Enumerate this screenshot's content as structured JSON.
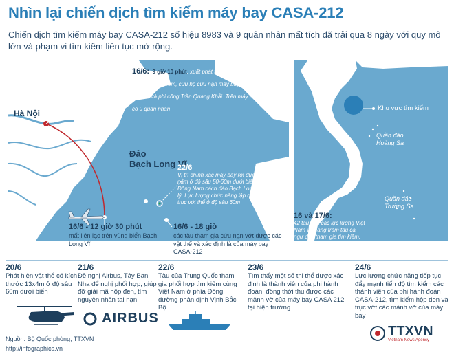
{
  "title": "Nhìn lại chiến dịch tìm kiếm máy bay CASA-212",
  "subtitle": "Chiến dịch tìm kiếm máy bay CASA-212 số hiệu 8983 và 9 quân nhân mất tích đã trải qua 8 ngày với quy mô lớn và phạm vi tìm kiếm liên tục mở rộng.",
  "map": {
    "hanoi": "Hà Nội",
    "island": "Đảo\nBạch Long Vĩ",
    "e1": {
      "date": "16/6:",
      "time": "9 giờ 10 phút",
      "text": ", xuất phát từ sân bay Gia Lâm tham gia tìm kiếm, cứu hộ cứu nạn máy bay SU-30MK2 và phi công Trần Quang Khải. Trên máy bay có 9 quân nhân"
    },
    "e2": {
      "date": "22/6",
      "text": "Vị trí chính xác máy bay rơi được xác định, nằm ở độ sâu 50-60m dưới biển, phía Nam Đông Nam cách đảo Bạch Long Vĩ 15 hải lý. Lực lượng chức năng lập các phương án trục vớt thể ở độ sâu 60m"
    },
    "e3": {
      "date": "16/6 - 12 giờ 30 phút",
      "text": "mất liên lạc trên vùng biển Bạch Long Vĩ"
    },
    "e4": {
      "date": "16/6 - 18 giờ",
      "text": "các tàu tham gia cứu nạn vớt được các vật thể và xác định là của máy bay CASA-212"
    }
  },
  "right_map": {
    "search_area": "Khu vực tìm kiếm",
    "hoang_sa": "Quần đảo\nHoàng Sa",
    "truong_sa": "Quần đảo\nTrường Sa",
    "e5": {
      "date": "16 và 17/6:",
      "text": "42 tàu của các lực lượng Việt Nam và hàng trăm tàu cá ngư dân tham gia tìm kiếm. Bộ Quốc phòng huy động trang thiết bị hiện đại nhất"
    }
  },
  "timeline": [
    {
      "date": "20/6",
      "text": "Phát hiện vật thể có kích thước 13x4m ở độ sâu 60m dưới biển"
    },
    {
      "date": "21/6",
      "text": "Đề nghị Airbus, Tây Ban Nha để nghị phối hợp, giúp đỡ giải mã hộp đen, tìm nguyên nhân tai nạn"
    },
    {
      "date": "22/6",
      "text": "Tàu của Trung Quốc tham gia phối hợp tìm kiếm cùng Việt Nam ở phía Đông đường phân định Vịnh Bắc Bộ"
    },
    {
      "date": "23/6",
      "text": "Tìm thấy một số thi thể được xác định là thành viên của phi hành đoàn, đồng thời thu được các mảnh vỡ của máy bay CASA 212 tại hiện trường"
    },
    {
      "date": "24/6",
      "text": "Lực lượng chức năng tiếp tục đẩy mạnh tiến độ tìm kiếm các thành viên của phi hành đoàn CASA-212, tìm kiếm hộp đen và trục vớt các mảnh vỡ của máy bay"
    }
  ],
  "airbus": "AIRBUS",
  "source": "Nguồn: Bộ Quốc phòng; TTXVN",
  "url": "http://infographics.vn",
  "logo": "TTXVN",
  "logo_sub": "Vietnam News Agency",
  "colors": {
    "sea": "#6aa9cf",
    "land": "#ffffff",
    "accent": "#2b7fb7",
    "route": "#c0282d",
    "dark": "#1e3f5c"
  }
}
